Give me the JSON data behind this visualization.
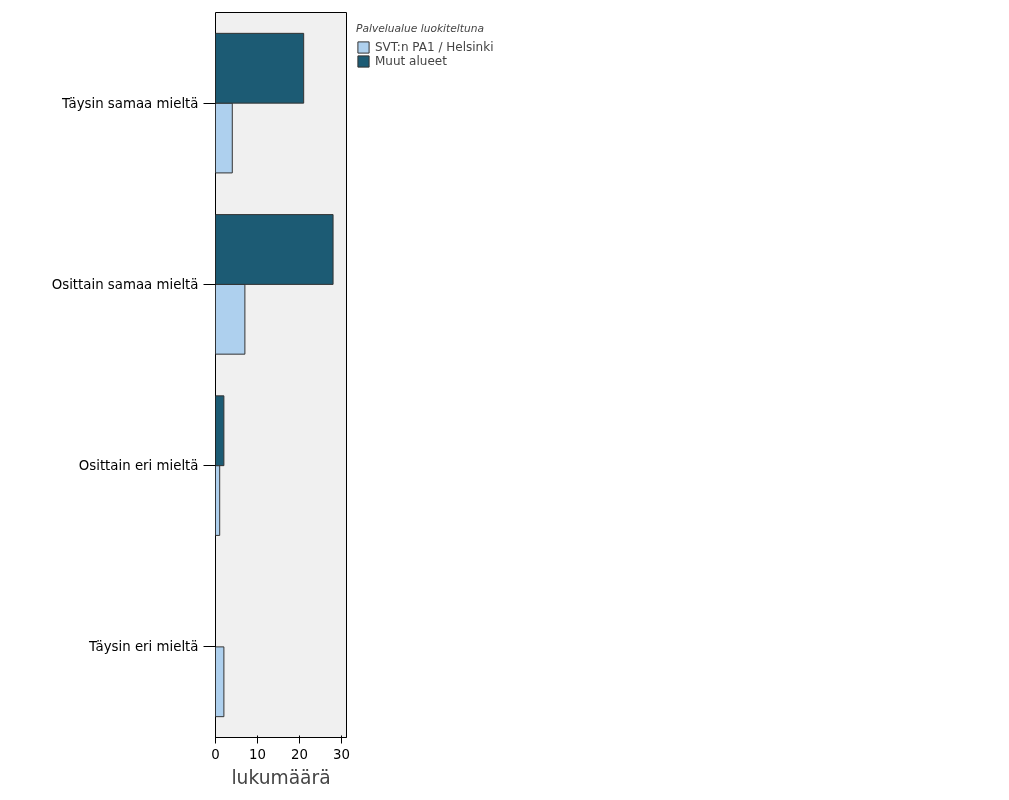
{
  "chart_data": {
    "type": "bar",
    "orientation": "horizontal",
    "xlabel": "lukumäärä",
    "legend_title": "Palvelualue luokiteltuna",
    "legend": "top right",
    "categories": [
      "Täysin samaa mieltä",
      "Osittain samaa mieltä",
      "Osittain eri mieltä",
      "Täysin eri mieltä"
    ],
    "series": [
      {
        "name": "SVT:n PA1 / Helsinki",
        "color": "#aed0ee",
        "values": [
          4,
          7,
          1,
          2
        ]
      },
      {
        "name": "Muut alueet",
        "color": "#1c5b74",
        "values": [
          21,
          28,
          2,
          null
        ]
      }
    ],
    "xlim": [
      0,
      31.2
    ],
    "xticks": [
      0,
      10,
      20,
      30
    ],
    "grid": false
  }
}
